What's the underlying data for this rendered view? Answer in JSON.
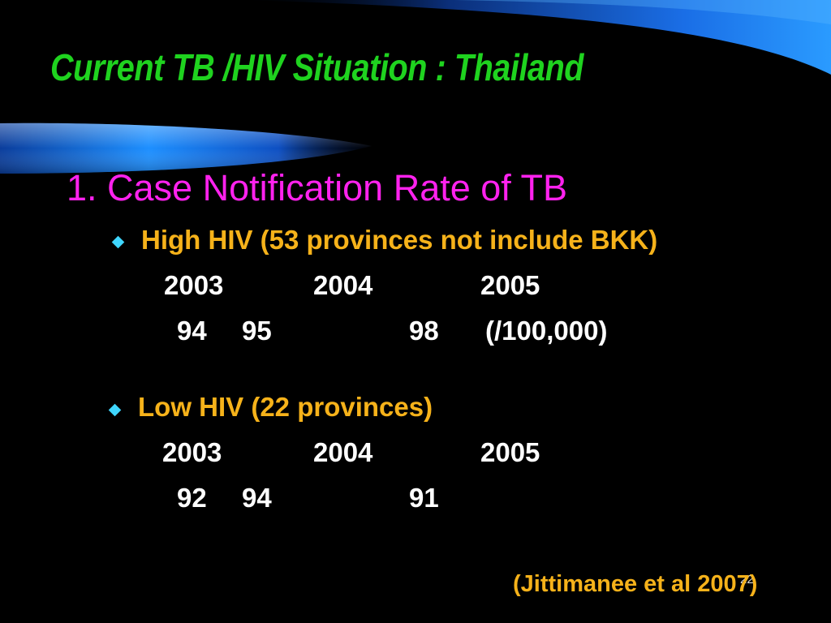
{
  "slide": {
    "title": "Current TB /HIV Situation : Thailand",
    "heading": "1. Case Notification Rate of TB",
    "sections": [
      {
        "bullet": "High HIV (53 provinces not include BKK)",
        "years": [
          "2003",
          "2004",
          "2005"
        ],
        "values": [
          "94",
          "95",
          "98"
        ],
        "unit": "(/100,000)"
      },
      {
        "bullet": "Low HIV (22 provinces)",
        "years": [
          "2003",
          "2004",
          "2005"
        ],
        "values": [
          "92",
          "94",
          "91"
        ]
      }
    ],
    "citation": "(Jittimanee et al 2007)",
    "slide_number": "22"
  },
  "colors": {
    "background": "#000000",
    "title": "#1fd31f",
    "heading": "#ff22ee",
    "bullet_text": "#f6b21a",
    "bullet_icon": "#3fd6ff",
    "body_text": "#ffffff",
    "decor_blue": "#1e8cff"
  }
}
